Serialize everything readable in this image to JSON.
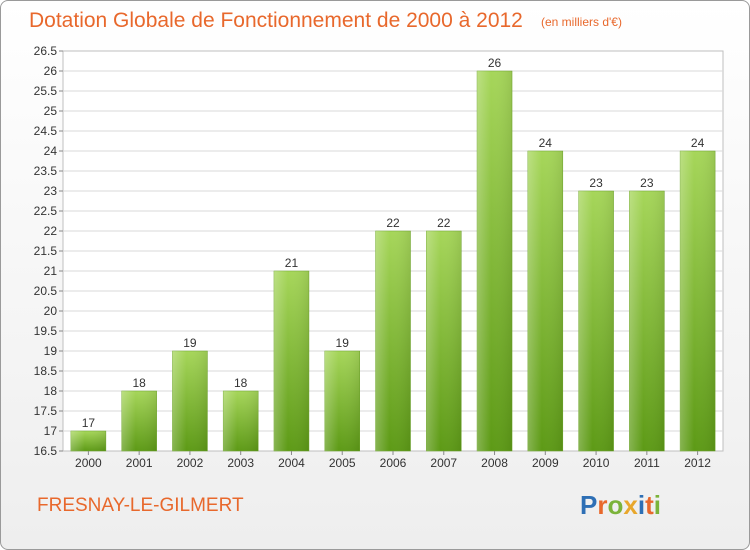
{
  "title": "Dotation Globale de Fonctionnement de 2000 à 2012",
  "subtitle": "(en milliers d'€)",
  "commune": "FRESNAY-LE-GILMERT",
  "logo": {
    "text": "Proxiti",
    "letters": [
      {
        "char": "P",
        "color": "#2e6fb5"
      },
      {
        "char": "r",
        "color": "#e8682c"
      },
      {
        "char": "o",
        "color": "#7bb33a"
      },
      {
        "char": "x",
        "color": "#e8a72c"
      },
      {
        "char": "i",
        "color": "#2e6fb5"
      },
      {
        "char": "t",
        "color": "#e8682c"
      },
      {
        "char": "i",
        "color": "#7bb33a"
      }
    ]
  },
  "colors": {
    "title": "#e8682c",
    "bar_top": "#a6d65a",
    "bar_bottom": "#5d9a16",
    "grid": "#d9d9d9"
  },
  "chart_data": {
    "type": "bar",
    "title": "Dotation Globale de Fonctionnement de 2000 à 2012",
    "subtitle": "(en milliers d'€)",
    "xlabel": "",
    "ylabel": "",
    "categories": [
      "2000",
      "2001",
      "2002",
      "2003",
      "2004",
      "2005",
      "2006",
      "2007",
      "2008",
      "2009",
      "2010",
      "2011",
      "2012"
    ],
    "values": [
      17,
      18,
      19,
      18,
      21,
      19,
      22,
      22,
      26,
      24,
      23,
      23,
      24
    ],
    "ylim": [
      16.5,
      26.5
    ],
    "yticks": [
      "16.5",
      "17",
      "17.5",
      "18",
      "18.5",
      "19",
      "19.5",
      "20",
      "20.5",
      "21",
      "21.5",
      "22",
      "22.5",
      "23",
      "23.5",
      "24",
      "24.5",
      "25",
      "25.5",
      "26",
      "26.5"
    ],
    "grid": true,
    "legend": "none"
  }
}
